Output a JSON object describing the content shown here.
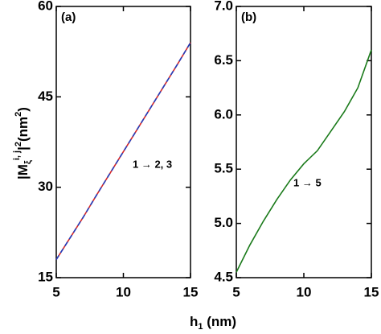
{
  "chart_data": [
    {
      "type": "line",
      "panel_label": "(a)",
      "annotation": "1 → 2, 3",
      "x": [
        5,
        6,
        7,
        8,
        9,
        10,
        11,
        12,
        13,
        14,
        15
      ],
      "series": [
        {
          "color": "#d62728",
          "style": "solid",
          "values": [
            18,
            21.5,
            25,
            28.7,
            32.3,
            35.9,
            39.5,
            43.1,
            46.7,
            50.3,
            54
          ]
        },
        {
          "color": "#1f3fbf",
          "style": "dashed",
          "values": [
            18,
            21.5,
            25,
            28.7,
            32.3,
            35.9,
            39.5,
            43.1,
            46.7,
            50.3,
            54
          ]
        }
      ],
      "xlim": [
        5,
        15
      ],
      "xticks": [
        5,
        10,
        15
      ],
      "ylim": [
        15,
        60
      ],
      "yticks": [
        15,
        30,
        45,
        60
      ]
    },
    {
      "type": "line",
      "panel_label": "(b)",
      "annotation": "1 → 5",
      "x": [
        5,
        6,
        7,
        8,
        9,
        10,
        11,
        12,
        13,
        14,
        15
      ],
      "series": [
        {
          "color": "#1a7a1a",
          "style": "solid",
          "values": [
            4.55,
            4.8,
            5.02,
            5.22,
            5.4,
            5.55,
            5.67,
            5.85,
            6.03,
            6.25,
            6.6
          ]
        }
      ],
      "xlim": [
        5,
        15
      ],
      "xticks": [
        5,
        10,
        15
      ],
      "ylim": [
        4.5,
        7.0
      ],
      "yticks": [
        4.5,
        {
          "value": 5,
          "label": "5.0"
        },
        5.5,
        {
          "value": 6,
          "label": "6.0"
        },
        6.5,
        {
          "value": 7,
          "label": "7.0"
        }
      ]
    }
  ],
  "y_label": {
    "open": "|M",
    "sub": "ξ",
    "sup": "i, j",
    "close": "|",
    "power": "2",
    "unit": "(nm",
    "unit_power": "2",
    "unit_close": ")"
  },
  "x_label": {
    "base": "h",
    "sub": "1",
    "unit": " (nm)"
  }
}
